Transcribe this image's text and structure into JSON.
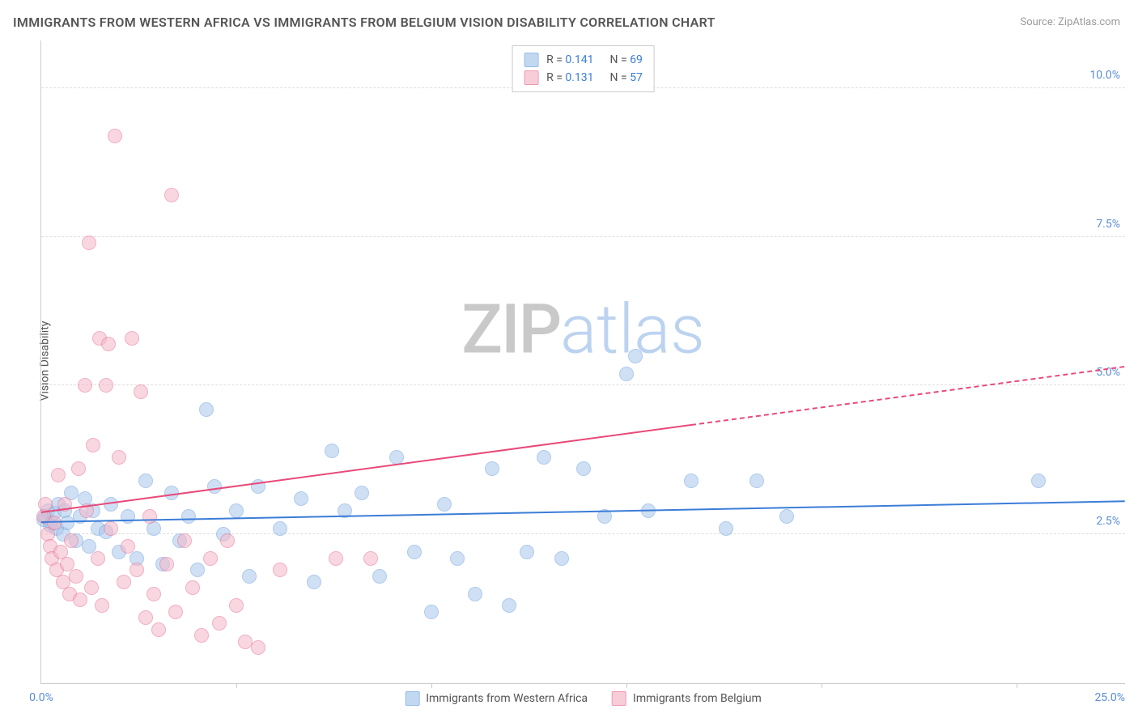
{
  "title": "IMMIGRANTS FROM WESTERN AFRICA VS IMMIGRANTS FROM BELGIUM VISION DISABILITY CORRELATION CHART",
  "source": "Source: ZipAtlas.com",
  "ylabel": "Vision Disability",
  "watermark": {
    "zip": "ZIP",
    "atlas": "atlas"
  },
  "chart": {
    "type": "scatter",
    "background_color": "#ffffff",
    "grid_color": "#dddddd",
    "axis_color": "#cccccc",
    "tick_label_color": "#5a8dd6",
    "xlim": [
      0,
      25
    ],
    "ylim": [
      0,
      10.8
    ],
    "x_origin_label": "0.0%",
    "x_max_label": "25.0%",
    "x_tick_positions": [
      4.5,
      9.0,
      13.5,
      18.0,
      22.5
    ],
    "y_ticks": [
      {
        "v": 2.5,
        "label": "2.5%"
      },
      {
        "v": 5.0,
        "label": "5.0%"
      },
      {
        "v": 7.5,
        "label": "7.5%"
      },
      {
        "v": 10.0,
        "label": "10.0%"
      }
    ],
    "series": [
      {
        "id": "western_africa",
        "label": "Immigrants from Western Africa",
        "fill_color": "#a9c8ec",
        "stroke_color": "#6ea0de",
        "fill_opacity": 0.55,
        "trend_color": "#3b7dd8",
        "marker_radius": 9,
        "line_width": 2,
        "R": "0.141",
        "N": "69",
        "trend": {
          "x1": 0,
          "y1": 2.7,
          "x2": 25,
          "y2": 3.05,
          "dash_after_x": null
        },
        "points": [
          [
            0.05,
            2.75
          ],
          [
            0.1,
            2.8
          ],
          [
            0.15,
            2.9
          ],
          [
            0.2,
            2.65
          ],
          [
            0.25,
            2.7
          ],
          [
            0.3,
            2.85
          ],
          [
            0.35,
            2.6
          ],
          [
            0.4,
            3.0
          ],
          [
            0.5,
            2.5
          ],
          [
            0.55,
            2.9
          ],
          [
            0.6,
            2.7
          ],
          [
            0.7,
            3.2
          ],
          [
            0.8,
            2.4
          ],
          [
            0.9,
            2.8
          ],
          [
            1.0,
            3.1
          ],
          [
            1.1,
            2.3
          ],
          [
            1.2,
            2.9
          ],
          [
            1.3,
            2.6
          ],
          [
            1.5,
            2.55
          ],
          [
            1.6,
            3.0
          ],
          [
            1.8,
            2.2
          ],
          [
            2.0,
            2.8
          ],
          [
            2.2,
            2.1
          ],
          [
            2.4,
            3.4
          ],
          [
            2.6,
            2.6
          ],
          [
            2.8,
            2.0
          ],
          [
            3.0,
            3.2
          ],
          [
            3.2,
            2.4
          ],
          [
            3.4,
            2.8
          ],
          [
            3.6,
            1.9
          ],
          [
            3.8,
            4.6
          ],
          [
            4.0,
            3.3
          ],
          [
            4.2,
            2.5
          ],
          [
            4.5,
            2.9
          ],
          [
            4.8,
            1.8
          ],
          [
            5.0,
            3.3
          ],
          [
            5.5,
            2.6
          ],
          [
            6.0,
            3.1
          ],
          [
            6.3,
            1.7
          ],
          [
            6.7,
            3.9
          ],
          [
            7.0,
            2.9
          ],
          [
            7.4,
            3.2
          ],
          [
            7.8,
            1.8
          ],
          [
            8.2,
            3.8
          ],
          [
            8.6,
            2.2
          ],
          [
            9.0,
            1.2
          ],
          [
            9.3,
            3.0
          ],
          [
            9.6,
            2.1
          ],
          [
            10.0,
            1.5
          ],
          [
            10.4,
            3.6
          ],
          [
            10.8,
            1.3
          ],
          [
            11.2,
            2.2
          ],
          [
            11.6,
            3.8
          ],
          [
            12.0,
            2.1
          ],
          [
            12.5,
            3.6
          ],
          [
            13.0,
            2.8
          ],
          [
            13.5,
            5.2
          ],
          [
            13.7,
            5.5
          ],
          [
            14.0,
            2.9
          ],
          [
            15.0,
            3.4
          ],
          [
            15.8,
            2.6
          ],
          [
            16.5,
            3.4
          ],
          [
            17.2,
            2.8
          ],
          [
            23.0,
            3.4
          ]
        ]
      },
      {
        "id": "belgium",
        "label": "Immigrants from Belgium",
        "fill_color": "#f4b8c8",
        "stroke_color": "#e86e94",
        "fill_opacity": 0.55,
        "trend_color": "#e84a7a",
        "marker_radius": 9,
        "line_width": 2,
        "R": "0.131",
        "N": "57",
        "trend": {
          "x1": 0,
          "y1": 2.85,
          "x2": 25,
          "y2": 5.3,
          "dash_after_x": 15.0
        },
        "points": [
          [
            0.05,
            2.8
          ],
          [
            0.1,
            3.0
          ],
          [
            0.15,
            2.5
          ],
          [
            0.2,
            2.3
          ],
          [
            0.25,
            2.1
          ],
          [
            0.3,
            2.7
          ],
          [
            0.35,
            1.9
          ],
          [
            0.4,
            3.5
          ],
          [
            0.45,
            2.2
          ],
          [
            0.5,
            1.7
          ],
          [
            0.55,
            3.0
          ],
          [
            0.6,
            2.0
          ],
          [
            0.65,
            1.5
          ],
          [
            0.7,
            2.4
          ],
          [
            0.8,
            1.8
          ],
          [
            0.85,
            3.6
          ],
          [
            0.9,
            1.4
          ],
          [
            1.0,
            5.0
          ],
          [
            1.05,
            2.9
          ],
          [
            1.1,
            7.4
          ],
          [
            1.15,
            1.6
          ],
          [
            1.2,
            4.0
          ],
          [
            1.3,
            2.1
          ],
          [
            1.35,
            5.8
          ],
          [
            1.4,
            1.3
          ],
          [
            1.5,
            5.0
          ],
          [
            1.55,
            5.7
          ],
          [
            1.6,
            2.6
          ],
          [
            1.7,
            9.2
          ],
          [
            1.8,
            3.8
          ],
          [
            1.9,
            1.7
          ],
          [
            2.0,
            2.3
          ],
          [
            2.1,
            5.8
          ],
          [
            2.2,
            1.9
          ],
          [
            2.3,
            4.9
          ],
          [
            2.4,
            1.1
          ],
          [
            2.5,
            2.8
          ],
          [
            2.6,
            1.5
          ],
          [
            2.7,
            0.9
          ],
          [
            2.9,
            2.0
          ],
          [
            3.0,
            8.2
          ],
          [
            3.1,
            1.2
          ],
          [
            3.3,
            2.4
          ],
          [
            3.5,
            1.6
          ],
          [
            3.7,
            0.8
          ],
          [
            3.9,
            2.1
          ],
          [
            4.1,
            1.0
          ],
          [
            4.3,
            2.4
          ],
          [
            4.5,
            1.3
          ],
          [
            4.7,
            0.7
          ],
          [
            5.0,
            0.6
          ],
          [
            5.5,
            1.9
          ],
          [
            6.8,
            2.1
          ],
          [
            7.6,
            2.1
          ]
        ]
      }
    ]
  }
}
